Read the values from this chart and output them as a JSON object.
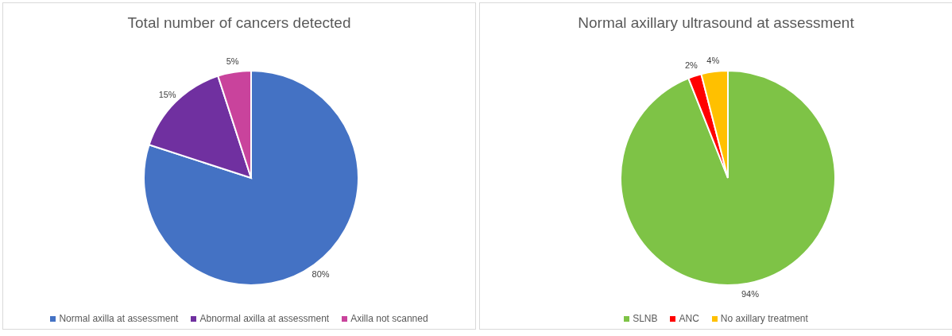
{
  "chart_data": [
    {
      "type": "pie",
      "title": "Total number of cancers detected",
      "categories": [
        "Normal axilla at assessment",
        "Abnormal axilla at assessment",
        "Axilla not scanned"
      ],
      "values": [
        80,
        15,
        5
      ],
      "colors": [
        "#4472c4",
        "#7030a0",
        "#c9439c"
      ],
      "value_labels": [
        "80%",
        "15%",
        "5%"
      ],
      "legend": "bottom"
    },
    {
      "type": "pie",
      "title": "Normal axillary ultrasound at assessment",
      "categories": [
        "SLNB",
        "ANC",
        "No axillary treatment"
      ],
      "values": [
        94,
        2,
        4
      ],
      "colors": [
        "#7ec346",
        "#ff0000",
        "#ffc000"
      ],
      "value_labels": [
        "94%",
        "2%",
        "4%"
      ],
      "legend": "bottom"
    }
  ]
}
